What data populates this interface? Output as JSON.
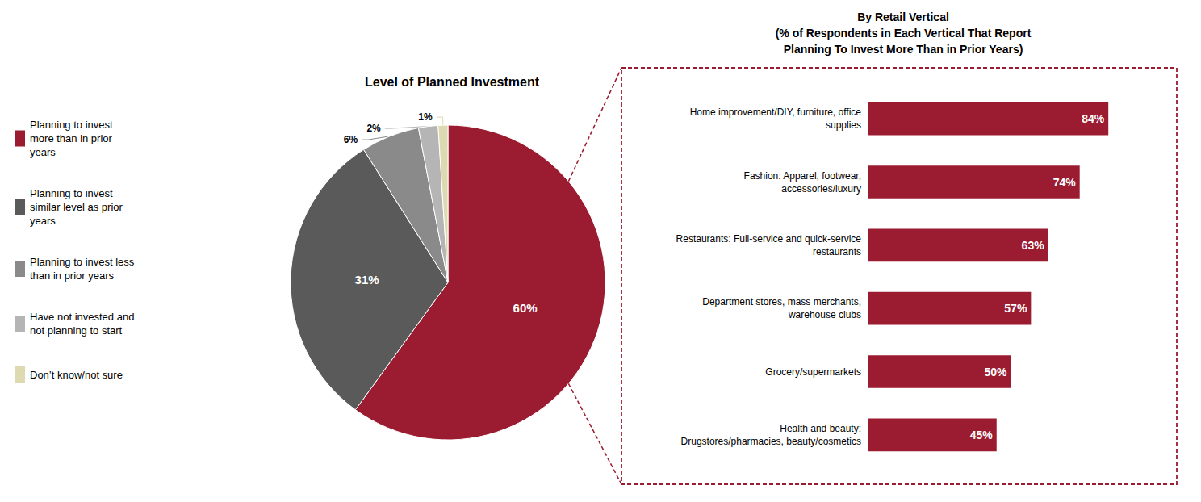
{
  "chart_data": [
    {
      "type": "pie",
      "title": "Level of Planned Investment",
      "categories": [
        "Planning to invest\nmore than in prior\nyears",
        "Planning to invest\nsimilar level as prior\nyears",
        "Planning to invest less\nthan in prior years",
        "Have not invested and\nnot planning to start",
        "Don’t know/not sure"
      ],
      "values": [
        60,
        31,
        6,
        2,
        1
      ],
      "value_labels": [
        "60%",
        "31%",
        "6%",
        "2%",
        "1%"
      ],
      "colors": [
        "#9B1B30",
        "#5a5a5a",
        "#8a8a8a",
        "#b5b5b5",
        "#ddd9b0"
      ],
      "data_labels": true,
      "legend": "left"
    },
    {
      "type": "bar",
      "title": "By Retail Vertical\n(% of Respondents in Each Vertical That Report\nPlanning To Invest More Than in Prior Years)",
      "categories": [
        "Home improvement/DIY, furniture, office\nsupplies",
        "Fashion: Apparel, footwear,\naccessories/luxury",
        "Restaurants: Full-service and quick-service\nrestaurants",
        "Department stores, mass merchants,\nwarehouse clubs",
        "Grocery/supermarkets",
        "Health and beauty:\nDrugstores/pharmacies, beauty/cosmetics"
      ],
      "values": [
        84,
        74,
        63,
        57,
        50,
        45
      ],
      "value_labels": [
        "84%",
        "74%",
        "63%",
        "57%",
        "50%",
        "45%"
      ],
      "color": "#9B1B30",
      "orientation": "horizontal",
      "xlim": [
        0,
        100
      ],
      "data_labels": true,
      "tick_labels": false,
      "grid": false
    }
  ]
}
